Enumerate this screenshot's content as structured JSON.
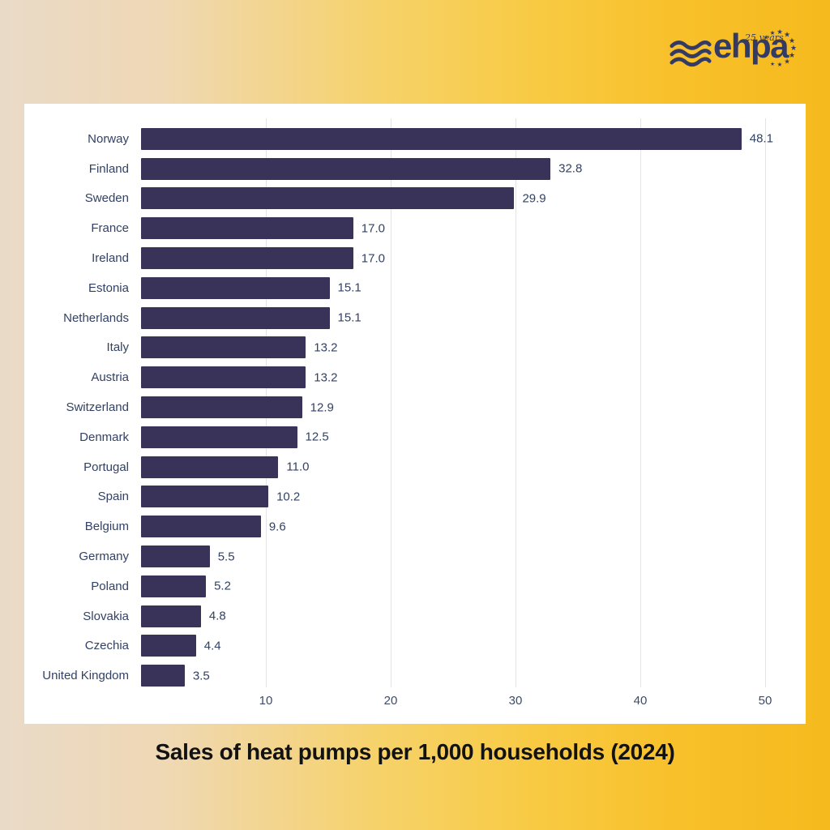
{
  "logo": {
    "brand": "ehpa",
    "tagline": "25 years",
    "color": "#333a63"
  },
  "chart_data": {
    "type": "bar",
    "orientation": "horizontal",
    "title": "Sales of heat pumps per 1,000 households (2024)",
    "categories": [
      "Norway",
      "Finland",
      "Sweden",
      "France",
      "Ireland",
      "Estonia",
      "Netherlands",
      "Italy",
      "Austria",
      "Switzerland",
      "Denmark",
      "Portugal",
      "Spain",
      "Belgium",
      "Germany",
      "Poland",
      "Slovakia",
      "Czechia",
      "United Kingdom"
    ],
    "values": [
      48.1,
      32.8,
      29.9,
      17.0,
      17.0,
      15.1,
      15.1,
      13.2,
      13.2,
      12.9,
      12.5,
      11.0,
      10.2,
      9.6,
      5.5,
      5.2,
      4.8,
      4.4,
      3.5
    ],
    "x_ticks": [
      10,
      20,
      30,
      40,
      50
    ],
    "xlim": [
      0,
      51
    ],
    "grid": true,
    "legend": false,
    "bar_color": "#3a3359",
    "label_color": "#324264",
    "grid_color": "#e4e4e6",
    "plot_background": "#ffffff"
  }
}
